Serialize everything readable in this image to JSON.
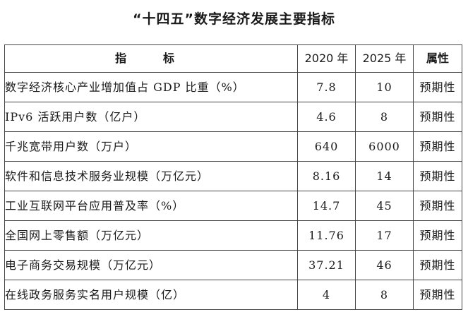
{
  "title": "“十四五”数字经济发展主要指标",
  "table": {
    "headers": {
      "indicator": "指　标",
      "year_2020": "2020 年",
      "year_2025": "2025 年",
      "attribute": "属性"
    },
    "rows": [
      {
        "indicator": "数字经济核心产业增加值占 GDP 比重（%）",
        "v2020": "7.8",
        "v2025": "10",
        "attribute": "预期性"
      },
      {
        "indicator": "IPv6 活跃用户数（亿户）",
        "v2020": "4.6",
        "v2025": "8",
        "attribute": "预期性"
      },
      {
        "indicator": "千兆宽带用户数（万户）",
        "v2020": "640",
        "v2025": "6000",
        "attribute": "预期性"
      },
      {
        "indicator": "软件和信息技术服务业规模（万亿元）",
        "v2020": "8.16",
        "v2025": "14",
        "attribute": "预期性"
      },
      {
        "indicator": "工业互联网平台应用普及率（%）",
        "v2020": "14.7",
        "v2025": "45",
        "attribute": "预期性"
      },
      {
        "indicator": "全国网上零售额（万亿元）",
        "v2020": "11.76",
        "v2025": "17",
        "attribute": "预期性"
      },
      {
        "indicator": "电子商务交易规模（万亿元）",
        "v2020": "37.21",
        "v2025": "46",
        "attribute": "预期性"
      },
      {
        "indicator": "在线政务服务实名用户规模（亿）",
        "v2020": "4",
        "v2025": "8",
        "attribute": "预期性"
      }
    ]
  }
}
